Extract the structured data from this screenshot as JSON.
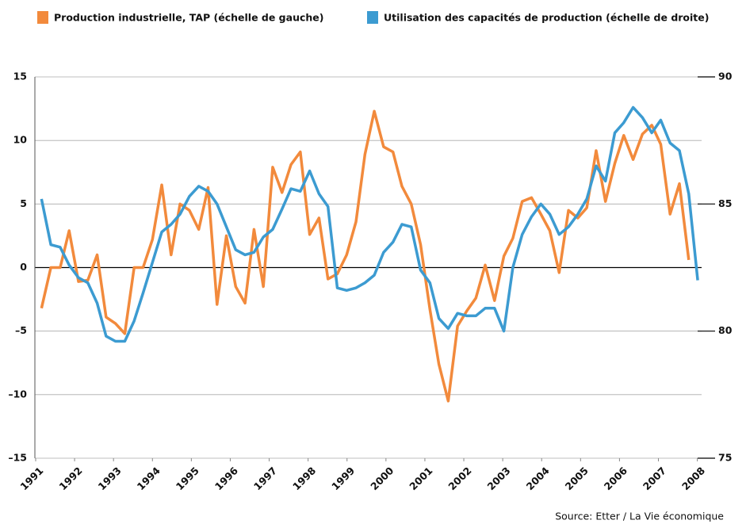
{
  "chart_data": {
    "type": "line",
    "legend": "top",
    "grid": true,
    "source": "Source: Etter / La Vie économique",
    "x": [
      1991.15,
      1991.39,
      1991.63,
      1991.86,
      1992.1,
      1992.34,
      1992.58,
      1992.81,
      1993.05,
      1993.29,
      1993.53,
      1993.76,
      1994.0,
      1994.24,
      1994.48,
      1994.71,
      1994.95,
      1995.19,
      1995.43,
      1995.66,
      1995.9,
      1996.14,
      1996.38,
      1996.61,
      1996.85,
      1997.09,
      1997.33,
      1997.56,
      1997.8,
      1998.04,
      1998.28,
      1998.51,
      1998.75,
      1998.99,
      1999.23,
      1999.46,
      1999.7,
      1999.94,
      2000.18,
      2000.41,
      2000.65,
      2000.89,
      2001.13,
      2001.36,
      2001.6,
      2001.84,
      2002.08,
      2002.31,
      2002.55,
      2002.79,
      2003.03,
      2003.26,
      2003.5,
      2003.74,
      2003.98,
      2004.21,
      2004.45,
      2004.69,
      2004.93,
      2005.16,
      2005.4,
      2005.64,
      2005.88,
      2006.11,
      2006.35,
      2006.59,
      2006.83,
      2007.06,
      2007.3,
      2007.54,
      2007.78,
      2008.01
    ],
    "series": [
      {
        "name": "Production industrielle, TAP (échelle de gauche)",
        "color": "#f28a3c",
        "values": [
          -3.2,
          0,
          0,
          2.9,
          -1.1,
          -1.0,
          1.0,
          -3.9,
          -4.4,
          -5.2,
          0,
          0,
          2.2,
          6.5,
          1.0,
          5.0,
          4.5,
          3.0,
          6.3,
          -2.9,
          2.5,
          -1.5,
          -2.8,
          3.0,
          -1.5,
          7.9,
          5.9,
          8.1,
          9.1,
          2.6,
          3.9,
          -0.9,
          -0.5,
          1.0,
          3.6,
          8.9,
          12.3,
          9.5,
          9.1,
          6.4,
          5.0,
          1.8,
          -3.3,
          -7.6,
          -10.5,
          -4.6,
          -3.4,
          -2.4,
          0.2,
          -2.6,
          0.9,
          2.3,
          5.2,
          5.5,
          4.2,
          2.9,
          -0.4,
          4.5,
          3.9,
          4.7,
          9.2,
          5.2,
          8.2,
          10.4,
          8.5,
          10.5,
          11.2,
          9.7,
          4.2,
          6.6,
          0.6,
          null
        ]
      },
      {
        "name": "Utilisation des capacités de production (échelle de droite)",
        "color": "#3c9bd1",
        "axis": "y2",
        "values": [
          85.2,
          83.4,
          83.3,
          82.6,
          82.1,
          81.9,
          81.1,
          79.8,
          79.6,
          79.6,
          80.4,
          81.5,
          82.7,
          83.9,
          84.2,
          84.6,
          85.3,
          85.7,
          85.5,
          85.0,
          84.1,
          83.2,
          83.0,
          83.1,
          83.7,
          84.0,
          84.8,
          85.6,
          85.5,
          86.3,
          85.4,
          84.9,
          81.7,
          81.6,
          81.7,
          81.9,
          82.2,
          83.1,
          83.5,
          84.2,
          84.1,
          82.4,
          81.9,
          80.5,
          80.1,
          80.7,
          80.6,
          80.6,
          80.9,
          80.9,
          80.0,
          82.5,
          83.8,
          84.5,
          85.0,
          84.6,
          83.8,
          84.1,
          84.6,
          85.2,
          86.5,
          85.9,
          87.8,
          88.2,
          88.8,
          88.4,
          87.8,
          88.3,
          87.4,
          87.1,
          85.4,
          82.0
        ]
      }
    ],
    "xlim": [
      1990.98,
      2008.11
    ],
    "xticks": [
      1991,
      1992,
      1993,
      1994,
      1995,
      1996,
      1997,
      1998,
      1999,
      2000,
      2001,
      2002,
      2003,
      2004,
      2005,
      2006,
      2007,
      2008
    ],
    "ylim": [
      -15,
      15
    ],
    "yticks": [
      {
        "value": -15,
        "label": "–15"
      },
      {
        "value": -10,
        "label": "–10"
      },
      {
        "value": -5,
        "label": "–5"
      },
      0,
      5,
      10,
      15
    ],
    "y2lim": [
      75,
      90
    ],
    "y2ticks": [
      75,
      80,
      85,
      90
    ]
  }
}
